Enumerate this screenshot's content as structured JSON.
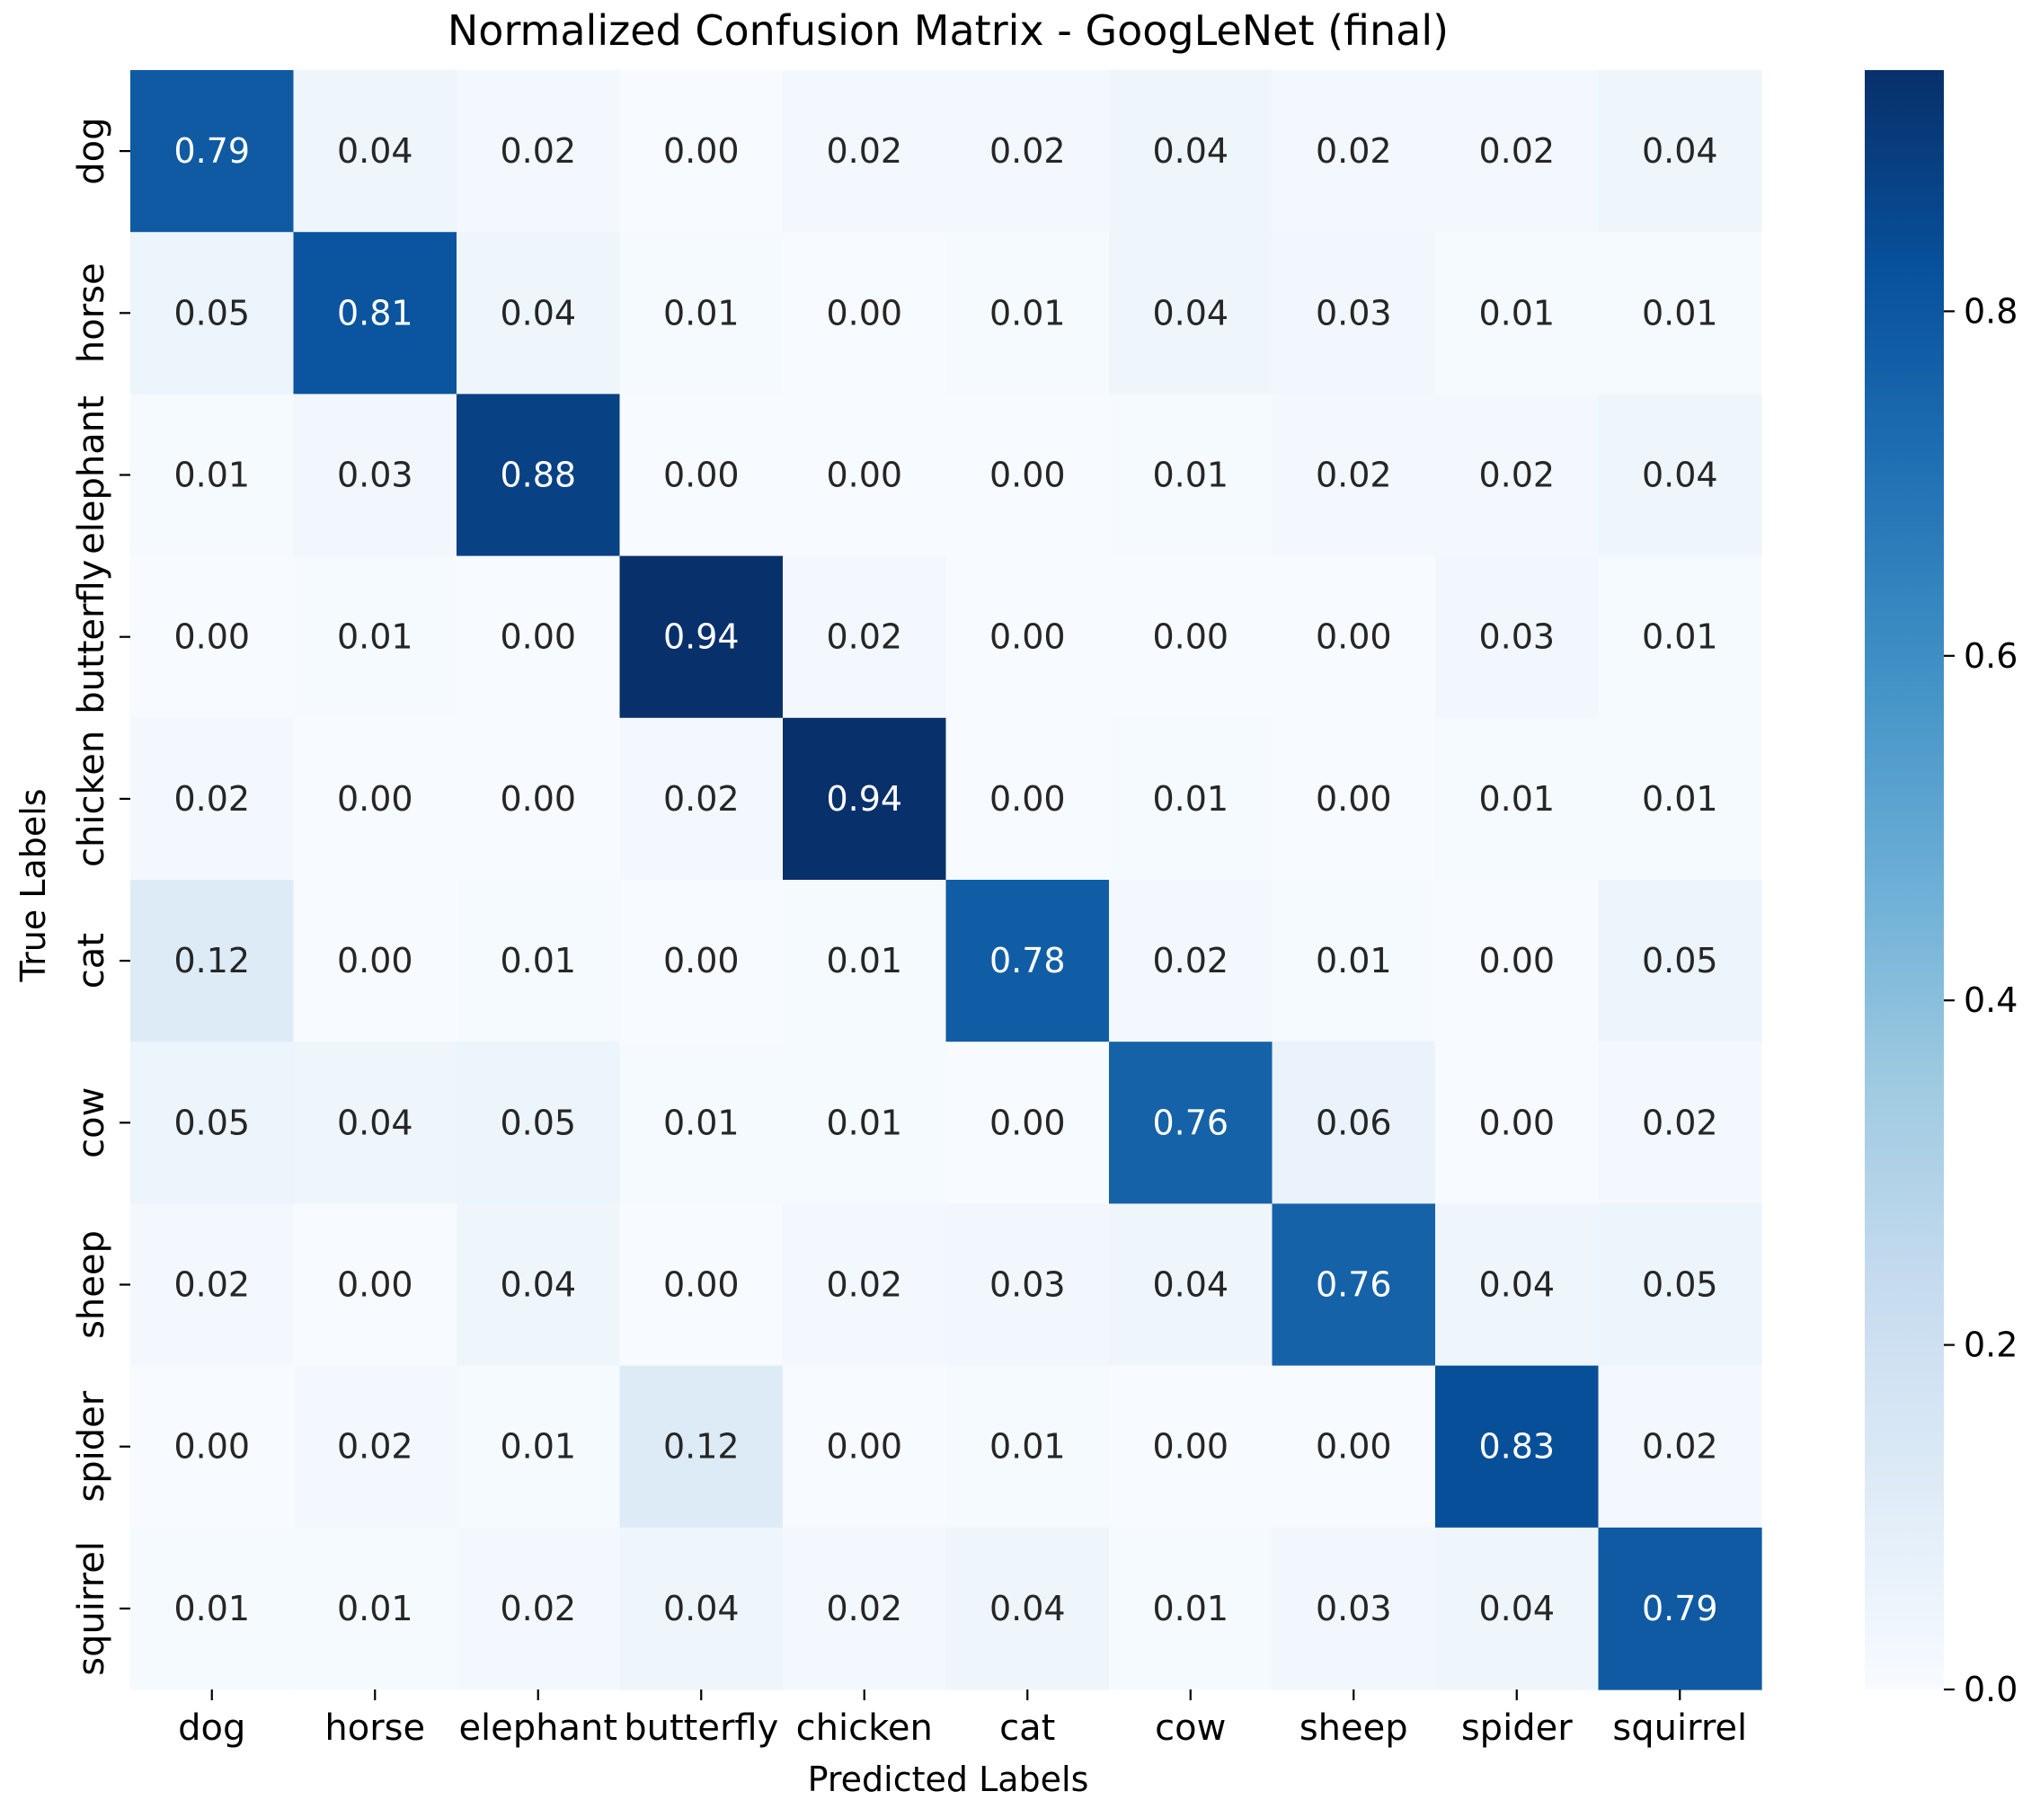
{
  "chart_data": {
    "type": "heatmap",
    "title": "Normalized Confusion Matrix - GoogLeNet (final)",
    "xlabel": "Predicted Labels",
    "ylabel": "True Labels",
    "x_categories": [
      "dog",
      "horse",
      "elephant",
      "butterfly",
      "chicken",
      "cat",
      "cow",
      "sheep",
      "spider",
      "squirrel"
    ],
    "y_categories": [
      "dog",
      "horse",
      "elephant",
      "butterfly",
      "chicken",
      "cat",
      "cow",
      "sheep",
      "spider",
      "squirrel"
    ],
    "values": [
      [
        0.79,
        0.04,
        0.02,
        0.0,
        0.02,
        0.02,
        0.04,
        0.02,
        0.02,
        0.04
      ],
      [
        0.05,
        0.81,
        0.04,
        0.01,
        0.0,
        0.01,
        0.04,
        0.03,
        0.01,
        0.01
      ],
      [
        0.01,
        0.03,
        0.88,
        0.0,
        0.0,
        0.0,
        0.01,
        0.02,
        0.02,
        0.04
      ],
      [
        0.0,
        0.01,
        0.0,
        0.94,
        0.02,
        0.0,
        0.0,
        0.0,
        0.03,
        0.01
      ],
      [
        0.02,
        0.0,
        0.0,
        0.02,
        0.94,
        0.0,
        0.01,
        0.0,
        0.01,
        0.01
      ],
      [
        0.12,
        0.0,
        0.01,
        0.0,
        0.01,
        0.78,
        0.02,
        0.01,
        0.0,
        0.05
      ],
      [
        0.05,
        0.04,
        0.05,
        0.01,
        0.01,
        0.0,
        0.76,
        0.06,
        0.0,
        0.02
      ],
      [
        0.02,
        0.0,
        0.04,
        0.0,
        0.02,
        0.03,
        0.04,
        0.76,
        0.04,
        0.05
      ],
      [
        0.0,
        0.02,
        0.01,
        0.12,
        0.0,
        0.01,
        0.0,
        0.0,
        0.83,
        0.02
      ],
      [
        0.01,
        0.01,
        0.02,
        0.04,
        0.02,
        0.04,
        0.01,
        0.03,
        0.04,
        0.79
      ]
    ],
    "value_format": "0.00",
    "colormap": "Blues",
    "color_range": [
      0.0,
      0.94
    ],
    "colorbar_ticks": [
      0.0,
      0.2,
      0.4,
      0.6,
      0.8
    ],
    "colorbar_tick_labels": [
      "0.0",
      "0.2",
      "0.4",
      "0.6",
      "0.8"
    ],
    "grid": false,
    "legend": "colorbar-right"
  }
}
